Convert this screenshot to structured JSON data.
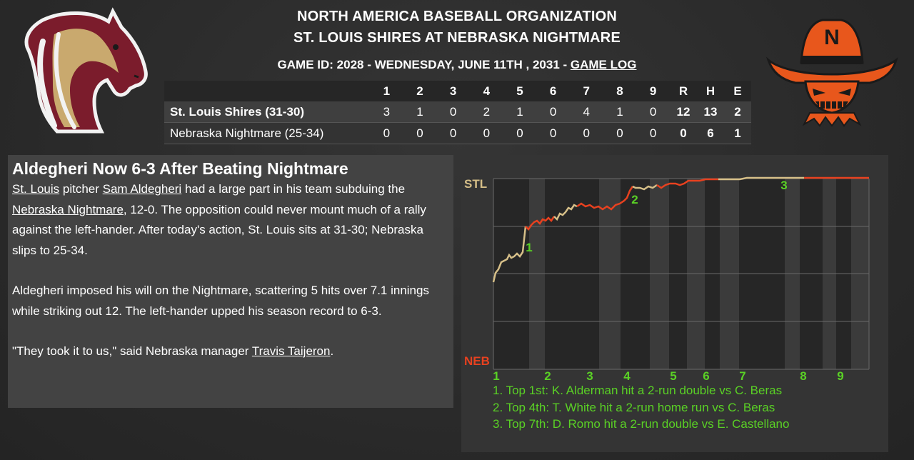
{
  "header": {
    "org": "NORTH AMERICA BASEBALL ORGANIZATION",
    "matchup": "ST. LOUIS SHIRES AT NEBRASKA NIGHTMARE",
    "game_info_prefix": "GAME ID: 2028 - WEDNESDAY, JUNE 11TH , 2031 - ",
    "game_log_link": "GAME LOG"
  },
  "logos": {
    "left": {
      "name": "shires-horse-logo",
      "colors": {
        "primary": "#7b1c2c",
        "accent": "#c9a96e"
      }
    },
    "right": {
      "name": "nightmare-logo",
      "letter": "N",
      "colors": {
        "primary": "#e8571c",
        "accent": "#1a1a1a"
      }
    }
  },
  "linescore": {
    "headers": [
      "1",
      "2",
      "3",
      "4",
      "5",
      "6",
      "7",
      "8",
      "9",
      "R",
      "H",
      "E"
    ],
    "rows": [
      {
        "team": "St. Louis Shires (31-30)",
        "innings": [
          "3",
          "1",
          "0",
          "2",
          "1",
          "0",
          "4",
          "1",
          "0"
        ],
        "R": "12",
        "H": "13",
        "E": "2"
      },
      {
        "team": "Nebraska Nightmare (25-34)",
        "innings": [
          "0",
          "0",
          "0",
          "0",
          "0",
          "0",
          "0",
          "0",
          "0"
        ],
        "R": "0",
        "H": "6",
        "E": "1"
      }
    ]
  },
  "article": {
    "headline": "Aldegheri Now 6-3 After Beating Nightmare",
    "p1": {
      "link1": "St. Louis",
      "t1": " pitcher ",
      "link2": "Sam Aldegheri",
      "t2": " had a large part in his team subduing the ",
      "link3": "Nebraska Nightmare",
      "t3": ", 12-0. The opposition could never mount much of a rally against the left-hander. After today's action, St. Louis sits at 31-30; Nebraska slips to 25-34."
    },
    "p2": "Aldegheri imposed his will on the Nightmare, scattering 5 hits over 7.1 innings while striking out 12. The left-hander upped his season record to 6-3.",
    "p3": {
      "t1": "\"They took it to us,\" said Nebraska manager ",
      "link": "Travis Taijeron",
      "t2": "."
    }
  },
  "win_prob": {
    "top_label": "STL",
    "bottom_label": "NEB",
    "colors": {
      "stl": "#d6bf88",
      "neb": "#e8411f",
      "marker": "#5ad125"
    },
    "inning_labels": [
      "1",
      "2",
      "3",
      "4",
      "5",
      "6",
      "7",
      "8",
      "9"
    ],
    "markers": [
      "1",
      "2",
      "3"
    ],
    "notes": [
      "1. Top 1st: K. Alderman hit a 2-run double vs C. Beras",
      "2. Top 4th: T. White hit a 2-run home run vs C. Beras",
      "3. Top 7th: D. Romo hit a 2-run double vs E. Castellano"
    ]
  }
}
